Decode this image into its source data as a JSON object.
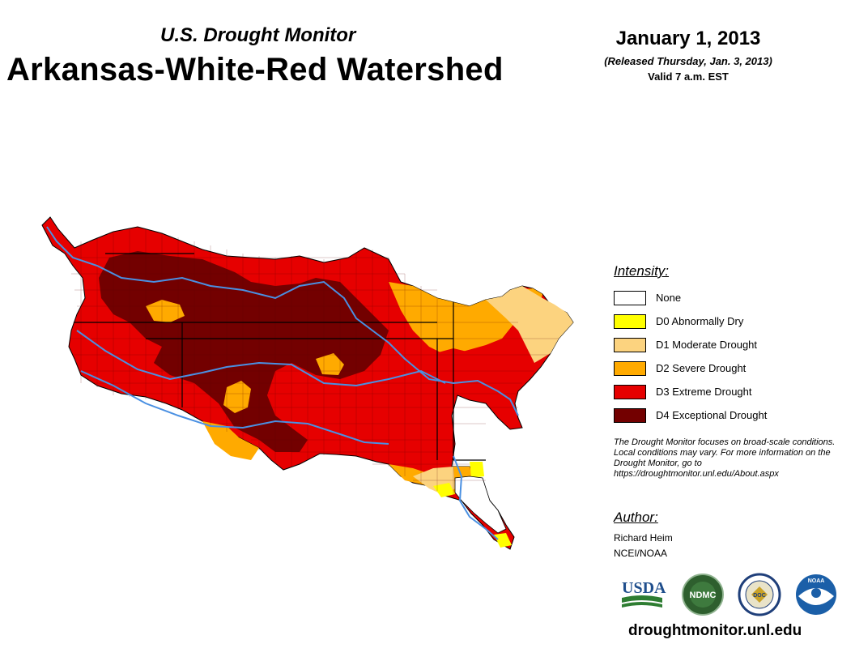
{
  "header": {
    "subtitle": "U.S. Drought Monitor",
    "title": "Arkansas-White-Red Watershed",
    "date": "January 1, 2013",
    "released": "(Released Thursday, Jan. 3, 2013)",
    "valid": "Valid 7 a.m. EST"
  },
  "legend": {
    "title": "Intensity:",
    "items": [
      {
        "label": "None",
        "color": "#ffffff"
      },
      {
        "label": "D0 Abnormally Dry",
        "color": "#ffff00"
      },
      {
        "label": "D1 Moderate Drought",
        "color": "#fcd37f"
      },
      {
        "label": "D2 Severe Drought",
        "color": "#ffaa00"
      },
      {
        "label": "D3 Extreme Drought",
        "color": "#e60000"
      },
      {
        "label": "D4 Exceptional Drought",
        "color": "#730000"
      }
    ]
  },
  "note": "The Drought Monitor focuses on broad-scale conditions. Local conditions may vary. For more information on the Drought Monitor, go to https://droughtmonitor.unl.edu/About.aspx",
  "author": {
    "title": "Author:",
    "name": "Richard Heim",
    "org": "NCEI/NOAA"
  },
  "logos": {
    "usda": "USDA",
    "ndmc": "NDMC",
    "noaa": "NOAA",
    "commerce": "DOC"
  },
  "footer": {
    "url": "droughtmonitor.unl.edu"
  },
  "colors": {
    "river": "#4a90e2",
    "border": "#000000"
  }
}
